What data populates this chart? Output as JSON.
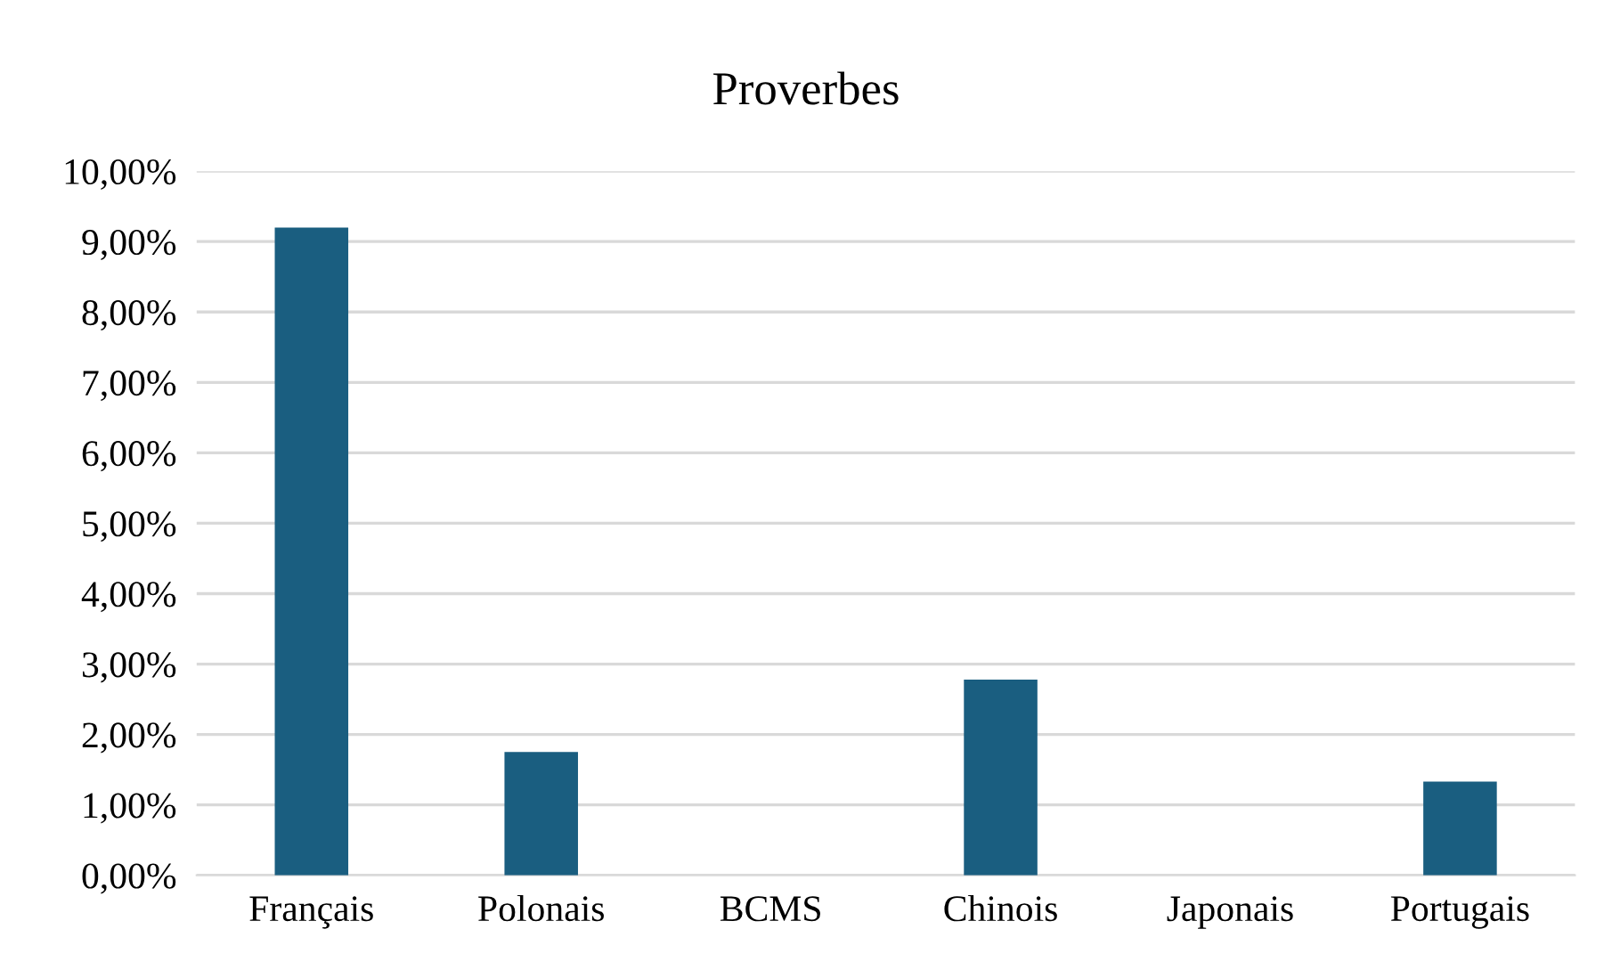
{
  "chart_data": {
    "type": "bar",
    "title": "Proverbes",
    "categories": [
      "Français",
      "Polonais",
      "BCMS",
      "Chinois",
      "Japonais",
      "Portugais"
    ],
    "values": [
      9.2,
      1.75,
      0,
      2.78,
      0,
      1.33
    ],
    "color": "#1a5e80",
    "ylim": [
      0,
      10
    ],
    "yticks": [
      {
        "value": 0,
        "label": "0,00%"
      },
      {
        "value": 1,
        "label": "1,00%"
      },
      {
        "value": 2,
        "label": "2,00%"
      },
      {
        "value": 3,
        "label": "3,00%"
      },
      {
        "value": 4,
        "label": "4,00%"
      },
      {
        "value": 5,
        "label": "5,00%"
      },
      {
        "value": 6,
        "label": "6,00%"
      },
      {
        "value": 7,
        "label": "7,00%"
      },
      {
        "value": 8,
        "label": "8,00%"
      },
      {
        "value": 9,
        "label": "9,00%"
      },
      {
        "value": 10,
        "label": "10,00%"
      }
    ],
    "grid": "y",
    "legend": false
  }
}
